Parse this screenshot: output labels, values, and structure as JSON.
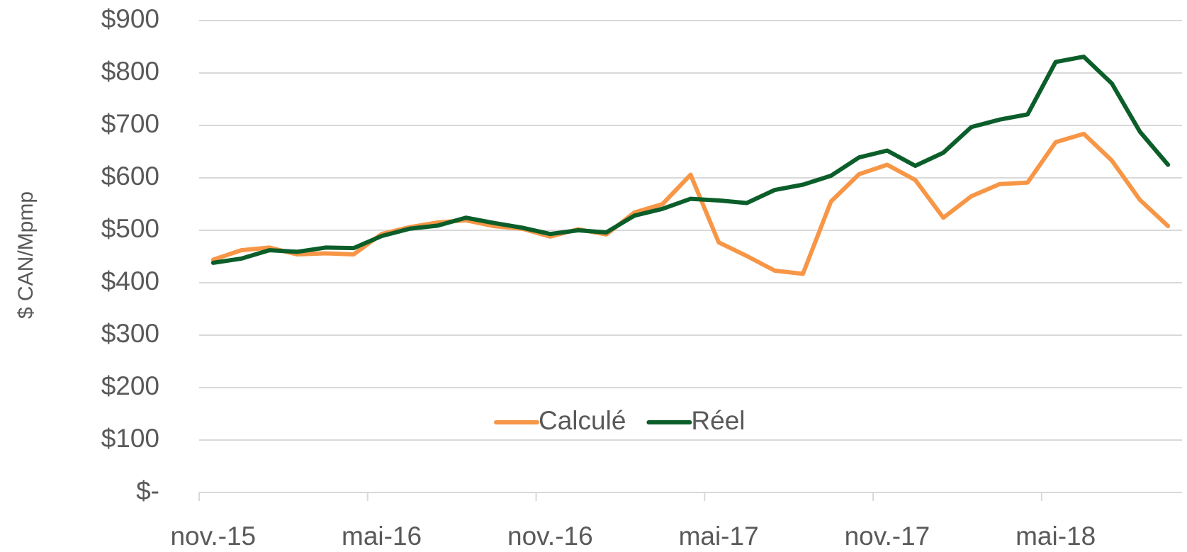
{
  "chart_data": {
    "type": "line",
    "y_label": "$ CAN/Mpmp",
    "categories": [
      "nov.-15",
      null,
      null,
      null,
      null,
      null,
      "mai-16",
      null,
      null,
      null,
      null,
      null,
      "nov.-16",
      null,
      null,
      null,
      null,
      null,
      "mai-17",
      null,
      null,
      null,
      null,
      null,
      "nov.-17",
      null,
      null,
      null,
      null,
      null,
      "mai-18",
      null,
      null,
      null,
      null
    ],
    "series": [
      {
        "name": "Calculé",
        "color": "#f79646",
        "values": [
          444,
          462,
          467,
          454,
          456,
          454,
          493,
          506,
          515,
          519,
          508,
          503,
          488,
          502,
          492,
          534,
          550,
          606,
          477,
          451,
          423,
          417,
          555,
          607,
          625,
          596,
          524,
          565,
          588,
          591,
          668,
          684,
          633,
          558,
          508
        ]
      },
      {
        "name": "Réel",
        "color": "#0b5e2a",
        "values": [
          438,
          446,
          462,
          459,
          467,
          466,
          489,
          503,
          509,
          524,
          514,
          505,
          493,
          500,
          496,
          528,
          541,
          560,
          557,
          552,
          577,
          587,
          604,
          639,
          652,
          623,
          648,
          697,
          711,
          721,
          821,
          831,
          780,
          688,
          625
        ]
      }
    ],
    "ylim": [
      0,
      900
    ],
    "yticks": [
      {
        "value": 0,
        "label": "$-"
      },
      {
        "value": 100,
        "label": "$100"
      },
      {
        "value": 200,
        "label": "$200"
      },
      {
        "value": 300,
        "label": "$300"
      },
      {
        "value": 400,
        "label": "$400"
      },
      {
        "value": 500,
        "label": "$500"
      },
      {
        "value": 600,
        "label": "$600"
      },
      {
        "value": 700,
        "label": "$700"
      },
      {
        "value": 800,
        "label": "$800"
      },
      {
        "value": 900,
        "label": "$900"
      }
    ],
    "grid": true,
    "legend": "inside-bottom"
  }
}
